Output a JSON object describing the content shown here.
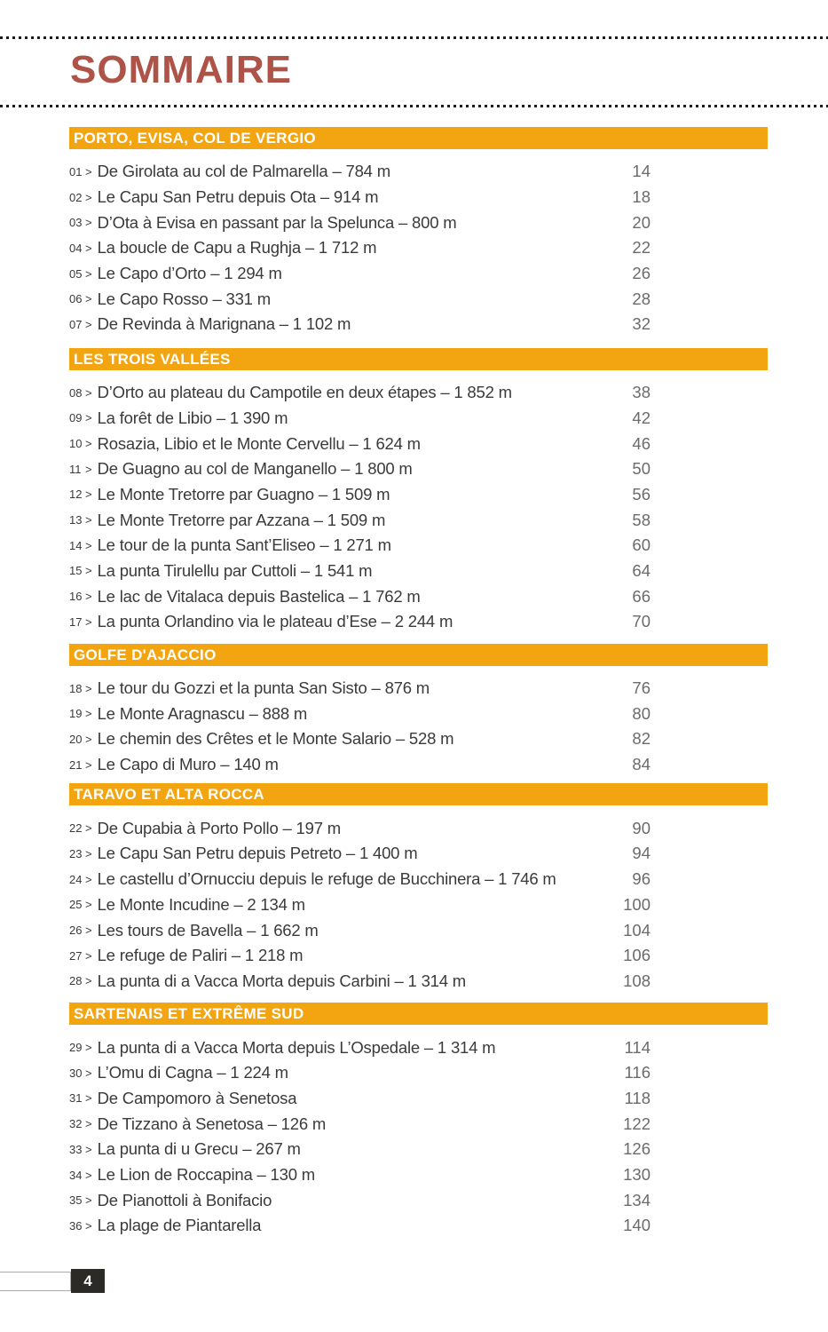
{
  "header": {
    "title": "SOMMAIRE"
  },
  "entry_separator": ">",
  "sections": [
    {
      "title": "PORTO, EVISA, COL DE VERGIO",
      "entries": [
        {
          "num": "01",
          "title": "De Girolata au col de Palmarella – 784 m",
          "page": "14"
        },
        {
          "num": "02",
          "title": "Le Capu San Petru depuis Ota – 914 m",
          "page": "18"
        },
        {
          "num": "03",
          "title": "D’Ota à Evisa en passant par la Spelunca – 800 m",
          "page": "20"
        },
        {
          "num": "04",
          "title": "La boucle de Capu a Rughja – 1 712 m",
          "page": "22"
        },
        {
          "num": "05",
          "title": "Le Capo d’Orto – 1 294 m",
          "page": "26"
        },
        {
          "num": "06",
          "title": "Le Capo Rosso – 331 m",
          "page": "28"
        },
        {
          "num": "07",
          "title": "De Revinda à Marignana – 1 102 m",
          "page": "32"
        }
      ]
    },
    {
      "title": "LES TROIS VALLÉES",
      "entries": [
        {
          "num": "08",
          "title": "D’Orto au plateau du Campotile en deux étapes – 1 852 m",
          "page": "38"
        },
        {
          "num": "09",
          "title": "La forêt de Libio – 1 390 m",
          "page": "42"
        },
        {
          "num": "10",
          "title": "Rosazia, Libio et le Monte Cervellu – 1 624 m",
          "page": "46"
        },
        {
          "num": "11",
          "title": "De Guagno au col de Manganello – 1 800 m",
          "page": "50"
        },
        {
          "num": "12",
          "title": "Le Monte Tretorre par Guagno – 1 509 m",
          "page": "56"
        },
        {
          "num": "13",
          "title": "Le Monte Tretorre par Azzana – 1 509 m",
          "page": "58"
        },
        {
          "num": "14",
          "title": "Le tour de la punta Sant’Eliseo – 1 271 m",
          "page": "60"
        },
        {
          "num": "15",
          "title": "La punta Tirulellu par Cuttoli – 1 541 m",
          "page": "64"
        },
        {
          "num": "16",
          "title": "Le lac de Vitalaca depuis Bastelica – 1 762 m",
          "page": "66"
        },
        {
          "num": "17",
          "title": "La punta Orlandino via le plateau d’Ese – 2 244 m",
          "page": "70"
        }
      ]
    },
    {
      "title": "GOLFE D'AJACCIO",
      "entries": [
        {
          "num": "18",
          "title": "Le tour du Gozzi et la punta San Sisto – 876 m",
          "page": "76"
        },
        {
          "num": "19",
          "title": "Le Monte Aragnascu – 888 m",
          "page": "80"
        },
        {
          "num": "20",
          "title": "Le chemin des Crêtes et le Monte Salario – 528 m",
          "page": "82"
        },
        {
          "num": "21",
          "title": "Le Capo di Muro – 140 m",
          "page": "84"
        }
      ]
    },
    {
      "title": "TARAVO ET ALTA ROCCA",
      "entries": [
        {
          "num": "22",
          "title": "De Cupabia à Porto Pollo – 197 m",
          "page": "90"
        },
        {
          "num": "23",
          "title": "Le Capu San Petru depuis Petreto – 1 400 m",
          "page": "94"
        },
        {
          "num": "24",
          "title": "Le castellu d’Ornucciu depuis le refuge de Bucchinera – 1 746 m",
          "page": "96"
        },
        {
          "num": "25",
          "title": "Le Monte Incudine – 2 134 m",
          "page": "100"
        },
        {
          "num": "26",
          "title": "Les tours de Bavella – 1 662 m",
          "page": "104"
        },
        {
          "num": "27",
          "title": "Le refuge de Paliri – 1 218 m",
          "page": "106"
        },
        {
          "num": "28",
          "title": "La punta di a Vacca Morta depuis Carbini – 1 314 m",
          "page": "108"
        }
      ]
    },
    {
      "title": "SARTENAIS ET EXTRÊME SUD",
      "entries": [
        {
          "num": "29",
          "title": "La punta di a Vacca Morta depuis L’Ospedale – 1 314 m",
          "page": "114"
        },
        {
          "num": "30",
          "title": "L’Omu di Cagna – 1 224 m",
          "page": "116"
        },
        {
          "num": "31",
          "title": "De Campomoro à Senetosa",
          "page": "118"
        },
        {
          "num": "32",
          "title": "De Tizzano à Senetosa – 126 m",
          "page": "122"
        },
        {
          "num": "33",
          "title": "La punta di u Grecu – 267 m",
          "page": "126"
        },
        {
          "num": "34",
          "title": "Le Lion de Roccapina – 130 m",
          "page": "130"
        },
        {
          "num": "35",
          "title": "De Pianottoli à Bonifacio",
          "page": "134"
        },
        {
          "num": "36",
          "title": "La plage de Piantarella",
          "page": "140"
        }
      ]
    }
  ],
  "footer": {
    "page_number": "4"
  },
  "colors": {
    "accent": "#F3A511",
    "title-red": "#AD5348",
    "entry-text": "#3A3A3B",
    "page-num": "#6B6B6B",
    "footer-dark": "#2B2A27",
    "dots": "#1C1C1C"
  }
}
